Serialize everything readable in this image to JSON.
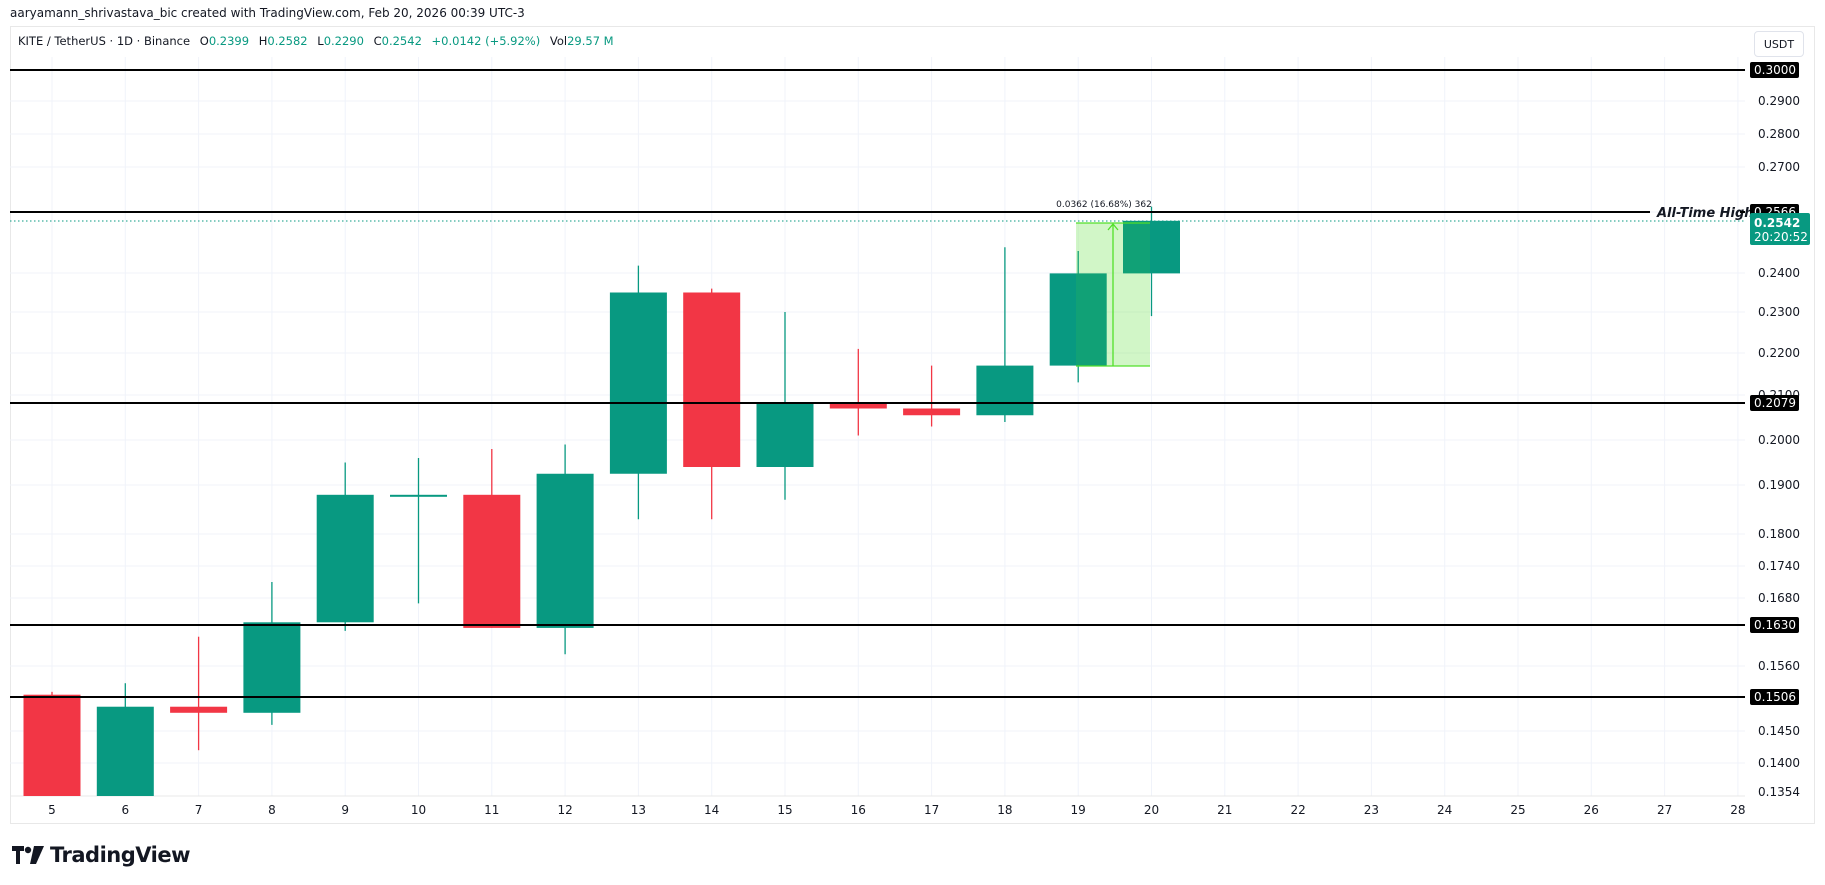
{
  "credit": "aaryamann_shrivastava_bic created with TradingView.com, Feb 20, 2026 00:39 UTC-3",
  "legend": {
    "symbol": "KITE / TetherUS · 1D · Binance",
    "o_label": "O",
    "o": "0.2399",
    "h_label": "H",
    "h": "0.2582",
    "l_label": "L",
    "l": "0.2290",
    "c_label": "C",
    "c": "0.2542",
    "change": "+0.0142 (+5.92%)",
    "vol_label": "Vol",
    "vol": "29.57 M"
  },
  "axis_unit": "USDT",
  "logo_text": "TradingView",
  "colors": {
    "up": "#089981",
    "down": "#f23645",
    "measure": "#52e02a"
  },
  "chart_data": {
    "type": "candlestick",
    "title": "KITE / TetherUS · 1D · Binance",
    "xlabel": "",
    "ylabel": "USDT",
    "x_ticks": [
      "5",
      "6",
      "7",
      "8",
      "9",
      "10",
      "11",
      "12",
      "13",
      "14",
      "15",
      "16",
      "17",
      "18",
      "19",
      "20",
      "21",
      "22",
      "23",
      "24",
      "25",
      "26",
      "27",
      "28"
    ],
    "y_ticks": [
      "0.3000",
      "0.2900",
      "0.2800",
      "0.2700",
      "0.2566",
      "0.2542",
      "0.2400",
      "0.2300",
      "0.2200",
      "0.2100",
      "0.2079",
      "0.2000",
      "0.1900",
      "0.1800",
      "0.1740",
      "0.1680",
      "0.1630",
      "0.1560",
      "0.1506",
      "0.1450",
      "0.1400",
      "0.1354"
    ],
    "ylim": [
      0.1354,
      0.305
    ],
    "candles": [
      {
        "day": "5",
        "open": 0.151,
        "high": 0.1515,
        "low": 0.1354,
        "close": 0.1354
      },
      {
        "day": "6",
        "open": 0.1354,
        "high": 0.153,
        "low": 0.1354,
        "close": 0.149
      },
      {
        "day": "7",
        "open": 0.149,
        "high": 0.161,
        "low": 0.142,
        "close": 0.148
      },
      {
        "day": "8",
        "open": 0.148,
        "high": 0.171,
        "low": 0.146,
        "close": 0.1635
      },
      {
        "day": "9",
        "open": 0.1635,
        "high": 0.195,
        "low": 0.162,
        "close": 0.188
      },
      {
        "day": "10",
        "open": 0.188,
        "high": 0.196,
        "low": 0.167,
        "close": 0.188
      },
      {
        "day": "11",
        "open": 0.188,
        "high": 0.198,
        "low": 0.1625,
        "close": 0.1625
      },
      {
        "day": "12",
        "open": 0.1625,
        "high": 0.199,
        "low": 0.158,
        "close": 0.1925
      },
      {
        "day": "13",
        "open": 0.1925,
        "high": 0.242,
        "low": 0.183,
        "close": 0.235
      },
      {
        "day": "14",
        "open": 0.235,
        "high": 0.236,
        "low": 0.183,
        "close": 0.194
      },
      {
        "day": "15",
        "open": 0.194,
        "high": 0.23,
        "low": 0.187,
        "close": 0.208
      },
      {
        "day": "16",
        "open": 0.208,
        "high": 0.221,
        "low": 0.201,
        "close": 0.207
      },
      {
        "day": "17",
        "open": 0.207,
        "high": 0.217,
        "low": 0.203,
        "close": 0.2055
      },
      {
        "day": "18",
        "open": 0.2055,
        "high": 0.247,
        "low": 0.204,
        "close": 0.217
      },
      {
        "day": "19",
        "open": 0.217,
        "high": 0.246,
        "low": 0.213,
        "close": 0.2399
      },
      {
        "day": "20",
        "open": 0.2399,
        "high": 0.2582,
        "low": 0.229,
        "close": 0.2542
      }
    ],
    "horizontal_lines": [
      {
        "price": "0.3000",
        "label": ""
      },
      {
        "price": "0.2566",
        "label": "All-Time High"
      },
      {
        "price": "0.2079",
        "label": ""
      },
      {
        "price": "0.1630",
        "label": ""
      },
      {
        "price": "0.1506",
        "label": ""
      }
    ],
    "last_price": {
      "price": "0.2542",
      "countdown": "20:20:52"
    },
    "measurement": {
      "text": "0.0362 (16.68%) 362",
      "from": 0.217,
      "to": 0.2532
    }
  }
}
